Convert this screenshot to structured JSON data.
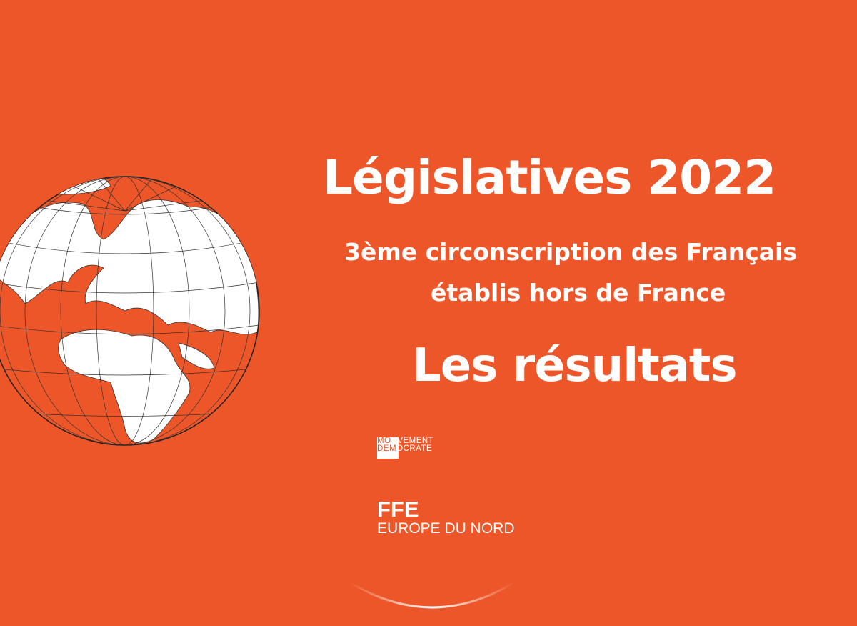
{
  "title": "Législatives 2022",
  "subtitle_line1": "3ème circonscription des Français",
  "subtitle_line2": "établis hors de France",
  "heading": "Les résultats",
  "logo": {
    "line1_a": "MO",
    "line1_b": "UVEMENT",
    "line2_a": "DEM",
    "line2_b": "OCRATE"
  },
  "ffe": "FFE",
  "ffe_region": "EUROPE DU NORD",
  "colors": {
    "background": "#ED5628",
    "text": "#FFFFFF"
  }
}
